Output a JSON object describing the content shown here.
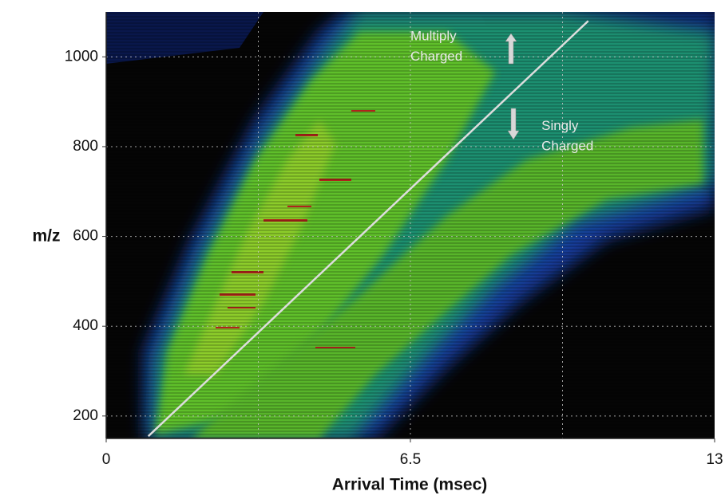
{
  "chart_data": {
    "type": "heatmap",
    "xlabel": "Arrival Time (msec)",
    "ylabel": "m/z",
    "xlim": [
      0,
      13
    ],
    "xticks": [
      0,
      6.5,
      13
    ],
    "xgrid": [
      3.25,
      6.5,
      9.75
    ],
    "ylim": [
      150,
      1100
    ],
    "yticks": [
      200,
      400,
      600,
      800,
      1000
    ],
    "grid": true,
    "line": {
      "x": [
        0.9,
        10.3
      ],
      "y": [
        155,
        1080
      ],
      "color": "#dddddd"
    },
    "annotations": [
      {
        "text": "Multiply",
        "x": 6.5,
        "y": 1045
      },
      {
        "text": "Charged",
        "x": 6.5,
        "y": 1000
      },
      {
        "text": "Singly",
        "x": 9.3,
        "y": 845
      },
      {
        "text": "Charged",
        "x": 9.3,
        "y": 800
      }
    ]
  }
}
